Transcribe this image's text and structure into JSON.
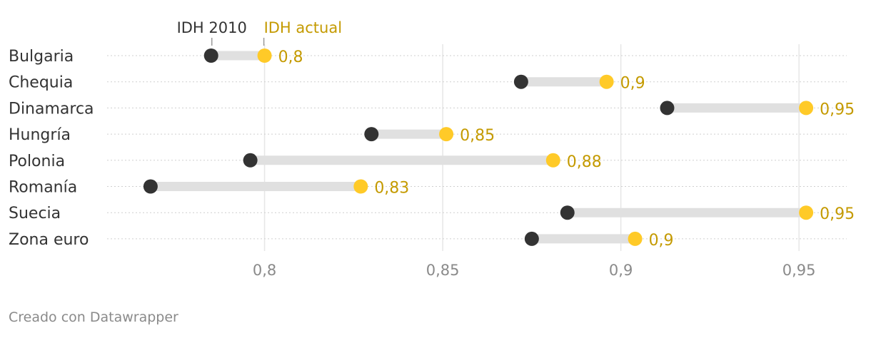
{
  "chart_data": {
    "type": "dumbbell",
    "legend": {
      "start_label": "IDH 2010",
      "end_label": "IDH actual"
    },
    "rows": [
      {
        "label": "Bulgaria",
        "start": 0.785,
        "end": 0.8,
        "value_label": "0,8"
      },
      {
        "label": "Chequia",
        "start": 0.872,
        "end": 0.896,
        "value_label": "0,9"
      },
      {
        "label": "Dinamarca",
        "start": 0.913,
        "end": 0.952,
        "value_label": "0,95"
      },
      {
        "label": "Hungría",
        "start": 0.83,
        "end": 0.851,
        "value_label": "0,85"
      },
      {
        "label": "Polonia",
        "start": 0.796,
        "end": 0.881,
        "value_label": "0,88"
      },
      {
        "label": "Romanía",
        "start": 0.768,
        "end": 0.827,
        "value_label": "0,83"
      },
      {
        "label": "Suecia",
        "start": 0.885,
        "end": 0.952,
        "value_label": "0,95"
      },
      {
        "label": "Zona euro",
        "start": 0.875,
        "end": 0.904,
        "value_label": "0,9"
      }
    ],
    "xlim": [
      0.7558,
      0.9634
    ],
    "xticks": [
      {
        "value": 0.8,
        "label": "0,8"
      },
      {
        "value": 0.85,
        "label": "0,85"
      },
      {
        "value": 0.9,
        "label": "0,9"
      },
      {
        "value": 0.95,
        "label": "0,95"
      }
    ],
    "colors": {
      "start": "#333333",
      "end": "#ffca28",
      "range": "#e0e0e0",
      "end_text": "#c49a00",
      "grid": "#e6e6e6"
    }
  },
  "footer": "Creado con Datawrapper"
}
